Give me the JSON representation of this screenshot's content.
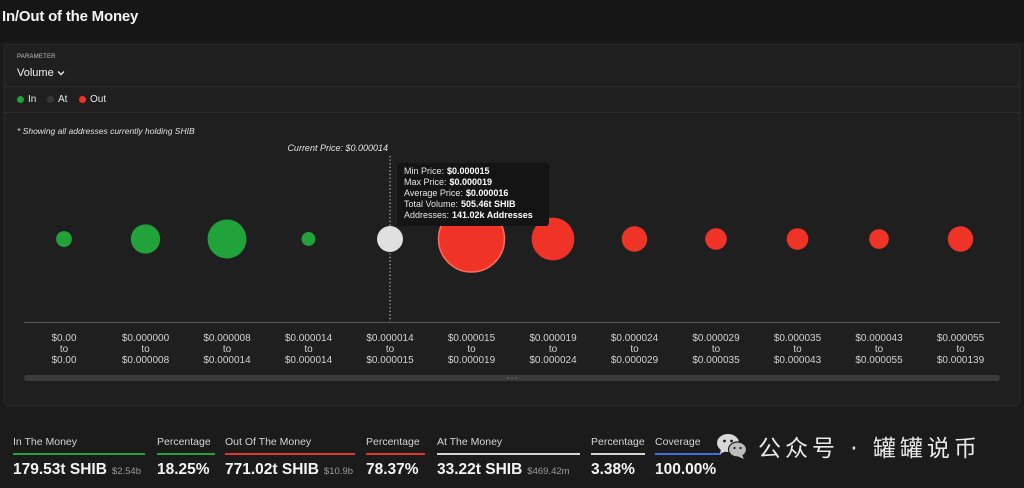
{
  "header": {
    "title": "In/Out of the Money"
  },
  "parameter": {
    "label": "PARAMETER",
    "value": "Volume",
    "icon": "chevron-down-icon"
  },
  "note": "* Showing all addresses currently holding SHIB",
  "chart_data": {
    "type": "scatter",
    "grid": false,
    "legend_placement": "top-left",
    "range_separator": "to",
    "categories": [
      {
        "from": "$0.00",
        "to": "$0.00"
      },
      {
        "from": "$0.000000",
        "to": "$0.000008"
      },
      {
        "from": "$0.000008",
        "to": "$0.000014"
      },
      {
        "from": "$0.000014",
        "to": "$0.000014"
      },
      {
        "from": "$0.000014",
        "to": "$0.000015"
      },
      {
        "from": "$0.000015",
        "to": "$0.000019"
      },
      {
        "from": "$0.000019",
        "to": "$0.000024"
      },
      {
        "from": "$0.000024",
        "to": "$0.000029"
      },
      {
        "from": "$0.000029",
        "to": "$0.000035"
      },
      {
        "from": "$0.000035",
        "to": "$0.000043"
      },
      {
        "from": "$0.000043",
        "to": "$0.000055"
      },
      {
        "from": "$0.000055",
        "to": "$0.000139"
      }
    ],
    "series": [
      {
        "name": "In",
        "color": "#21a23a",
        "values": [
          2.3,
          51.3,
          125.4,
          0.5,
          null,
          null,
          null,
          null,
          null,
          null,
          null,
          null
        ]
      },
      {
        "name": "At",
        "color": "#e0e0e0",
        "values": [
          null,
          null,
          null,
          null,
          33.22,
          null,
          null,
          null,
          null,
          null,
          null,
          null
        ]
      },
      {
        "name": "Out",
        "color": "#ef3427",
        "values": [
          null,
          null,
          null,
          null,
          null,
          505.46,
          163.4,
          30.7,
          15.5,
          15.5,
          9.8,
          30.7
        ]
      }
    ],
    "current_price": {
      "label": "Current Price: $0.000014",
      "index": 4
    },
    "tooltip": {
      "index": 5,
      "rows": [
        {
          "label": "Min Price:",
          "value": "$0.000015"
        },
        {
          "label": "Max Price:",
          "value": "$0.000019"
        },
        {
          "label": "Average Price:",
          "value": "$0.000016"
        },
        {
          "label": "Total Volume:",
          "value": "505.46t SHIB"
        },
        {
          "label": "Addresses:",
          "value": "141.02k Addresses"
        }
      ]
    }
  },
  "summary": [
    {
      "label": "In The Money",
      "value": "179.53t SHIB",
      "sub": "$2.54b",
      "color": "#22a33b"
    },
    {
      "label": "Percentage",
      "value": "18.25%",
      "color": "#22a33b"
    },
    {
      "label": "Out Of The Money",
      "value": "771.02t SHIB",
      "sub": "$10.9b",
      "color": "#e0362c"
    },
    {
      "label": "Percentage",
      "value": "78.37%",
      "color": "#e0362c"
    },
    {
      "label": "At The Money",
      "value": "33.22t SHIB",
      "sub": "$469.42m",
      "color": "#d6d6d6"
    },
    {
      "label": "Percentage",
      "value": "3.38%",
      "color": "#d6d6d6"
    },
    {
      "label": "Coverage",
      "value": "100.00%",
      "color": "#3b72de"
    }
  ],
  "watermark": {
    "icon": "wechat-icon",
    "text": "公众号 · 罐罐说币"
  }
}
